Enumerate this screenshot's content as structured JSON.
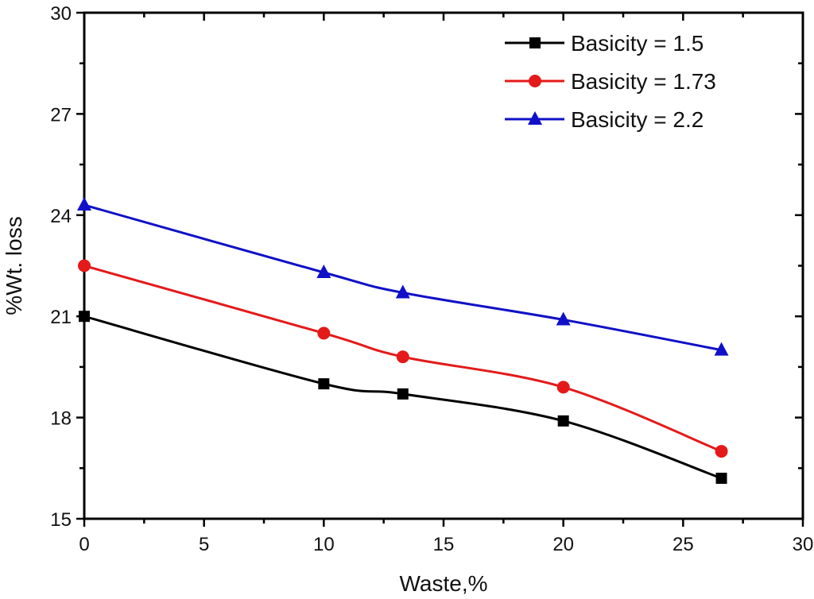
{
  "chart_data": {
    "type": "line",
    "title": "",
    "xlabel": "Waste,%",
    "ylabel": "%Wt. loss",
    "xlim": [
      0,
      30
    ],
    "ylim": [
      15,
      30
    ],
    "x_ticks": [
      0,
      5,
      10,
      15,
      20,
      25,
      30
    ],
    "y_ticks": [
      15,
      18,
      21,
      24,
      27,
      30
    ],
    "x_tick_labels": [
      "0",
      "5",
      "10",
      "15",
      "20",
      "25",
      "30"
    ],
    "y_tick_labels": [
      "15",
      "18",
      "21",
      "24",
      "27",
      "30"
    ],
    "x_minor_step": 2.5,
    "y_minor_step": 1.5,
    "grid": false,
    "legend_position": "top-right",
    "smooth": true,
    "x": [
      0,
      10,
      13.3,
      20,
      26.6
    ],
    "series": [
      {
        "name": "Basicity = 1.5",
        "color": "#000000",
        "marker": "square",
        "values": [
          21.0,
          19.0,
          18.7,
          17.9,
          16.2
        ]
      },
      {
        "name": "Basicity = 1.73",
        "color": "#e41a1a",
        "marker": "circle",
        "values": [
          22.5,
          20.5,
          19.8,
          18.9,
          17.0
        ]
      },
      {
        "name": "Basicity = 2.2",
        "color": "#1010c8",
        "marker": "triangle",
        "values": [
          24.3,
          22.3,
          21.7,
          20.9,
          20.0
        ]
      }
    ]
  }
}
